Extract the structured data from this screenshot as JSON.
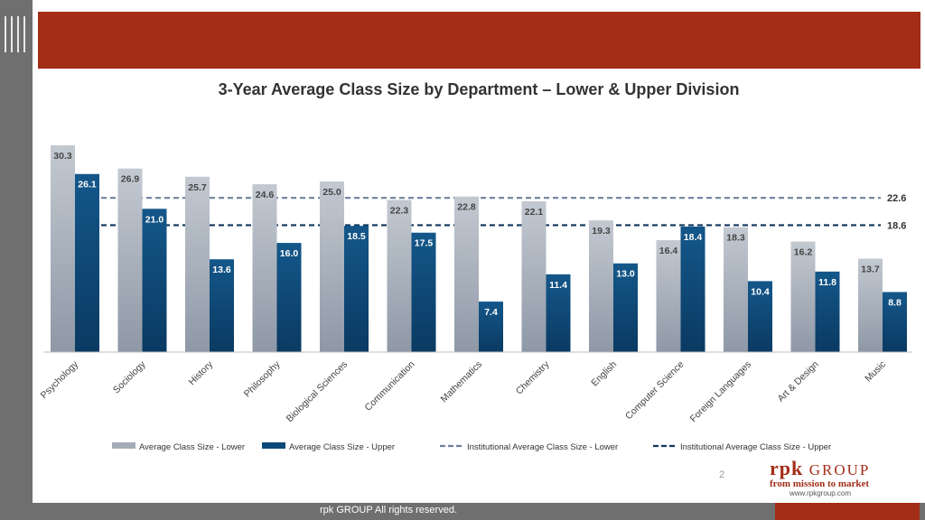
{
  "slide": {
    "page_number": "2",
    "footer": "rpk GROUP  All rights reserved.",
    "logo": {
      "brand": "rpk",
      "group": "GROUP",
      "tagline": "from mission to market",
      "url": "www.rpkgroup.com"
    },
    "colors": {
      "banner": "#a32d17",
      "side": "#6f6f6f",
      "lower": "#a4acb7",
      "upper": "#0d4a78",
      "inst_lower": "#6f819d",
      "inst_upper": "#12365d"
    }
  },
  "chart_data": {
    "type": "bar",
    "title": "3-Year Average Class Size by Department – Lower & Upper Division",
    "categories": [
      "Psychology",
      "Sociology",
      "History",
      "Philosophy",
      "Biological Sciences",
      "Communication",
      "Mathematics",
      "Chemistry",
      "English",
      "Computer Science",
      "Foreign Languages",
      "Art & Design",
      "Music"
    ],
    "series": [
      {
        "name": "Average Class Size - Lower",
        "values": [
          30.3,
          26.9,
          25.7,
          24.6,
          25.0,
          22.3,
          22.8,
          22.1,
          19.3,
          16.4,
          18.3,
          16.2,
          13.7
        ]
      },
      {
        "name": "Average Class Size - Upper",
        "values": [
          26.1,
          21.0,
          13.6,
          16.0,
          18.5,
          17.5,
          7.4,
          11.4,
          13.0,
          18.4,
          10.4,
          11.8,
          8.8
        ]
      }
    ],
    "reference_lines": [
      {
        "name": "Institutional Average Class Size - Lower",
        "value": 22.6,
        "label": "22.6"
      },
      {
        "name": "Institutional Average Class Size - Upper",
        "value": 18.6,
        "label": "18.6"
      }
    ],
    "ylim": [
      0,
      30.3
    ],
    "grid": false,
    "legend_position": "bottom"
  }
}
